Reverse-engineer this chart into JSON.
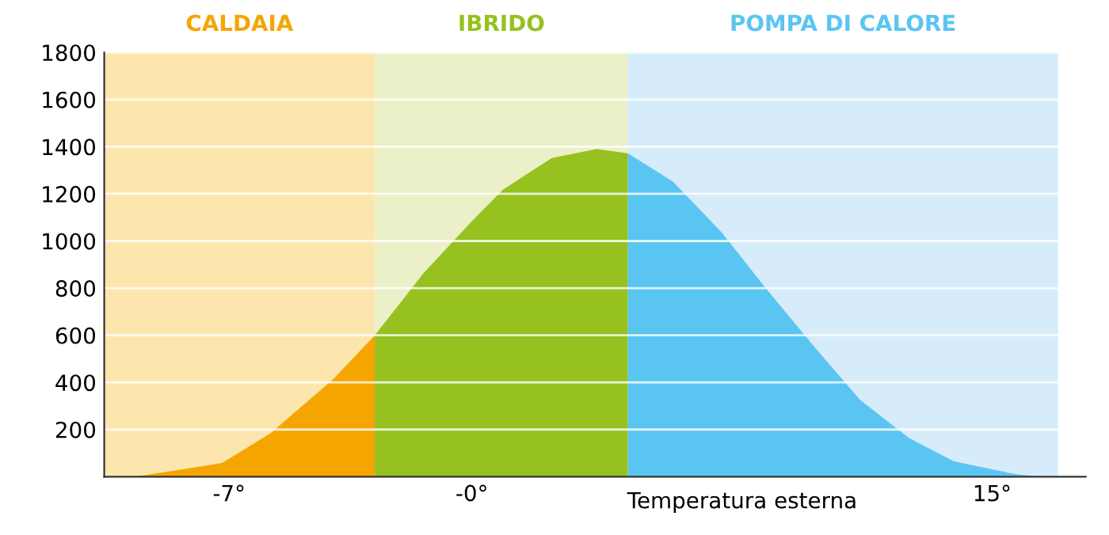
{
  "chart_data": {
    "type": "area",
    "xlabel": "Temperatura esterna",
    "xlim": [
      -10.6,
      17.7
    ],
    "ylim": [
      0,
      1800
    ],
    "xticks": [
      {
        "value": -7,
        "label": "-7°"
      },
      {
        "value": 0,
        "label": "-0°"
      },
      {
        "value": 15,
        "label": "15°"
      }
    ],
    "yticks": [
      200,
      400,
      600,
      800,
      1000,
      1200,
      1400,
      1600,
      1800
    ],
    "grid": "y",
    "bands": [
      {
        "axis": "x",
        "from": -10.6,
        "to": -2.8,
        "label": "CALDAIA",
        "color": "#fde6ad"
      },
      {
        "axis": "x",
        "from": -2.8,
        "to": 4.5,
        "label": "IBRIDO",
        "color": "#ebf0c8"
      },
      {
        "axis": "x",
        "from": 4.5,
        "to": 16.9,
        "label": "POMPA DI CALORE",
        "color": "#d6ecfb"
      }
    ],
    "series": [
      {
        "color": "#f5a500",
        "x": [
          -9.7,
          -7.2,
          -5.8,
          -4.0,
          -2.8
        ],
        "values": [
          0,
          58,
          185,
          413,
          600
        ]
      },
      {
        "color": "#96c11f",
        "x": [
          -2.8,
          -1.4,
          0,
          0.9,
          2.3,
          3.6,
          4.5
        ],
        "values": [
          600,
          862,
          1084,
          1218,
          1352,
          1390,
          1372
        ]
      },
      {
        "color": "#5bc5f2",
        "x": [
          4.5,
          5.8,
          7.2,
          8.5,
          9.9,
          11.2,
          12.6,
          13.9,
          15.7,
          16.4
        ],
        "values": [
          1372,
          1252,
          1037,
          795,
          547,
          325,
          165,
          65,
          10,
          0
        ]
      }
    ]
  }
}
